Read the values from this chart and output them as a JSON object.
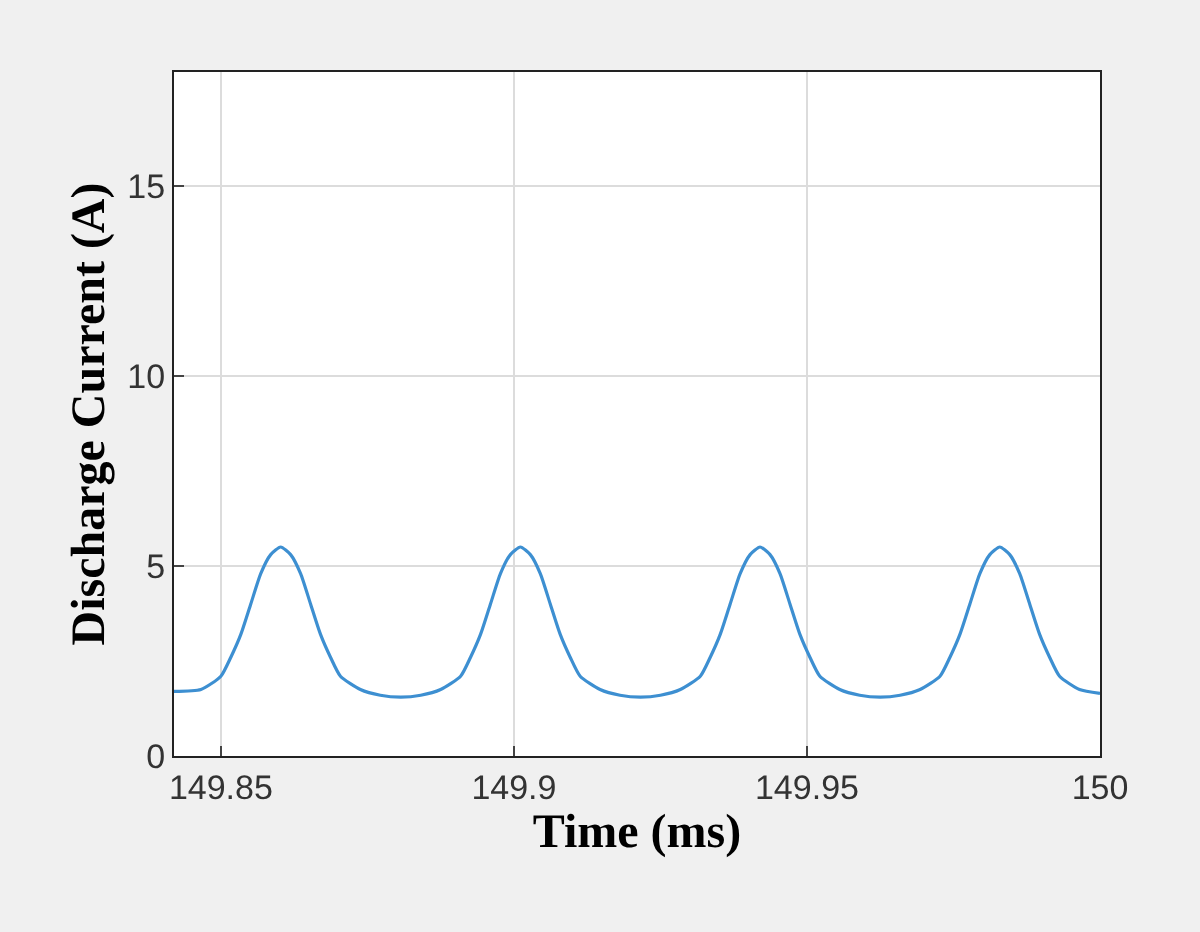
{
  "chart_data": {
    "type": "line",
    "xlabel": "Time (ms)",
    "ylabel": "Discharge Current (A)",
    "xlim": [
      149.842,
      150
    ],
    "xticks": [
      149.85,
      149.9,
      149.95,
      150
    ],
    "ylim": [
      0,
      18
    ],
    "yticks": [
      0,
      5,
      10,
      15
    ],
    "grid": true,
    "x": [
      149.842,
      149.8466,
      149.85,
      149.8517,
      149.8534,
      149.8551,
      149.8568,
      149.8585,
      149.8602,
      149.8619,
      149.8636,
      149.8653,
      149.867,
      149.8687,
      149.8704,
      149.8738,
      149.8772,
      149.8807,
      149.8841,
      149.8875,
      149.8909,
      149.8926,
      149.8943,
      149.896,
      149.8977,
      149.8994,
      149.9011,
      149.9028,
      149.9045,
      149.9062,
      149.9079,
      149.9096,
      149.9113,
      149.9147,
      149.9181,
      149.9216,
      149.925,
      149.9284,
      149.9318,
      149.9335,
      149.9352,
      149.9369,
      149.9386,
      149.9403,
      149.942,
      149.9437,
      149.9454,
      149.9471,
      149.9488,
      149.9505,
      149.9522,
      149.9556,
      149.959,
      149.9625,
      149.9659,
      149.9693,
      149.9727,
      149.9744,
      149.9761,
      149.9778,
      149.9795,
      149.9812,
      149.9829,
      149.9846,
      149.9863,
      149.988,
      149.9897,
      149.9914,
      149.9931,
      149.9965,
      150
    ],
    "series": [
      {
        "color": "#3d8fd1",
        "values": [
          1.7,
          1.75,
          2.1,
          2.6,
          3.2,
          4.0,
          4.8,
          5.3,
          5.5,
          5.3,
          4.8,
          4.0,
          3.2,
          2.6,
          2.1,
          1.75,
          1.6,
          1.55,
          1.6,
          1.75,
          2.1,
          2.6,
          3.2,
          4.0,
          4.8,
          5.3,
          5.5,
          5.3,
          4.8,
          4.0,
          3.2,
          2.6,
          2.1,
          1.75,
          1.6,
          1.55,
          1.6,
          1.75,
          2.1,
          2.6,
          3.2,
          4.0,
          4.8,
          5.3,
          5.5,
          5.3,
          4.8,
          4.0,
          3.2,
          2.6,
          2.1,
          1.75,
          1.6,
          1.55,
          1.6,
          1.75,
          2.1,
          2.6,
          3.2,
          4.0,
          4.8,
          5.3,
          5.5,
          5.3,
          4.8,
          4.0,
          3.2,
          2.6,
          2.1,
          1.75,
          1.65
        ]
      }
    ]
  }
}
